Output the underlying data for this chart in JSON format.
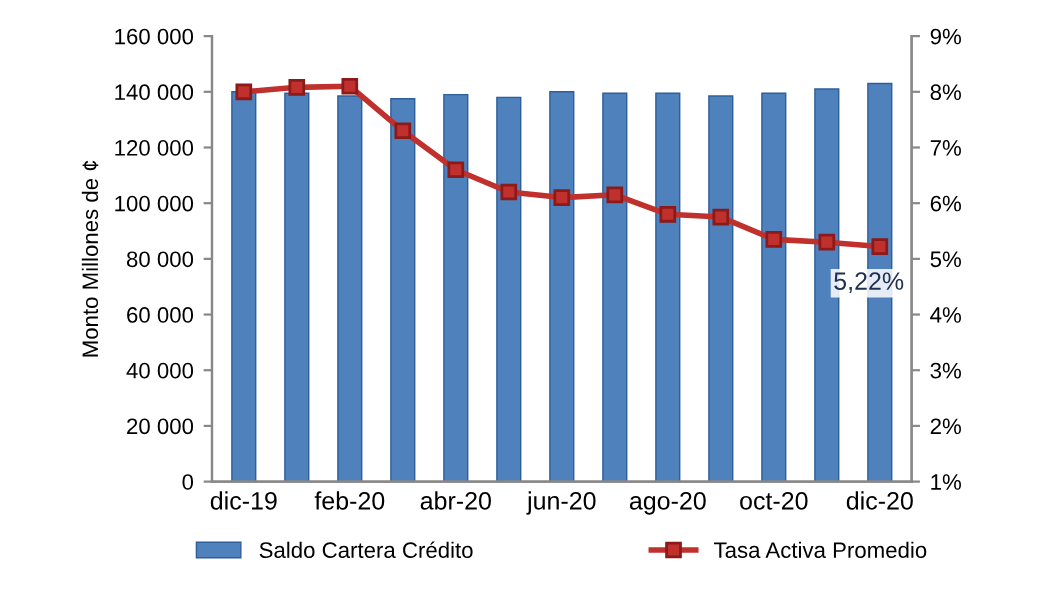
{
  "chart_data": {
    "type": "bar",
    "ylabel": "Monto Millones de ¢",
    "categories": [
      "dic-19",
      null,
      "feb-20",
      null,
      "abr-20",
      null,
      "jun-20",
      null,
      "ago-20",
      null,
      "oct-20",
      null,
      "dic-20"
    ],
    "series": [
      {
        "name": "Saldo Cartera Crédito",
        "color": "#4f81bd",
        "values": [
          140000,
          139500,
          138500,
          137500,
          139000,
          138000,
          140000,
          139500,
          139500,
          138500,
          139500,
          141000,
          143000
        ]
      },
      {
        "name": "Tasa Activa Promedio",
        "type": "line",
        "axis": "y2",
        "color": "#c0302c",
        "marker": "square",
        "values": [
          8.0,
          8.08,
          8.1,
          7.3,
          6.6,
          6.2,
          6.1,
          6.15,
          5.8,
          5.75,
          5.35,
          5.3,
          5.22
        ],
        "value_labels": [
          null,
          null,
          null,
          null,
          null,
          null,
          null,
          null,
          null,
          null,
          null,
          null,
          "5,22%"
        ]
      }
    ],
    "ylim": [
      0,
      160000
    ],
    "yticks": [
      {
        "value": 0,
        "label": "0"
      },
      {
        "value": 20000,
        "label": "20 000"
      },
      {
        "value": 40000,
        "label": "40 000"
      },
      {
        "value": 60000,
        "label": "60 000"
      },
      {
        "value": 80000,
        "label": "80 000"
      },
      {
        "value": 100000,
        "label": "100 000"
      },
      {
        "value": 120000,
        "label": "120 000"
      },
      {
        "value": 140000,
        "label": "140 000"
      },
      {
        "value": 160000,
        "label": "160 000"
      }
    ],
    "y2lim": [
      1,
      9
    ],
    "y2ticks": [
      {
        "value": 1,
        "label": "1%"
      },
      {
        "value": 2,
        "label": "2%"
      },
      {
        "value": 3,
        "label": "3%"
      },
      {
        "value": 4,
        "label": "4%"
      },
      {
        "value": 5,
        "label": "5%"
      },
      {
        "value": 6,
        "label": "6%"
      },
      {
        "value": 7,
        "label": "7%"
      },
      {
        "value": 8,
        "label": "8%"
      },
      {
        "value": 9,
        "label": "9%"
      }
    ],
    "grid": false,
    "legend": "bottom"
  }
}
